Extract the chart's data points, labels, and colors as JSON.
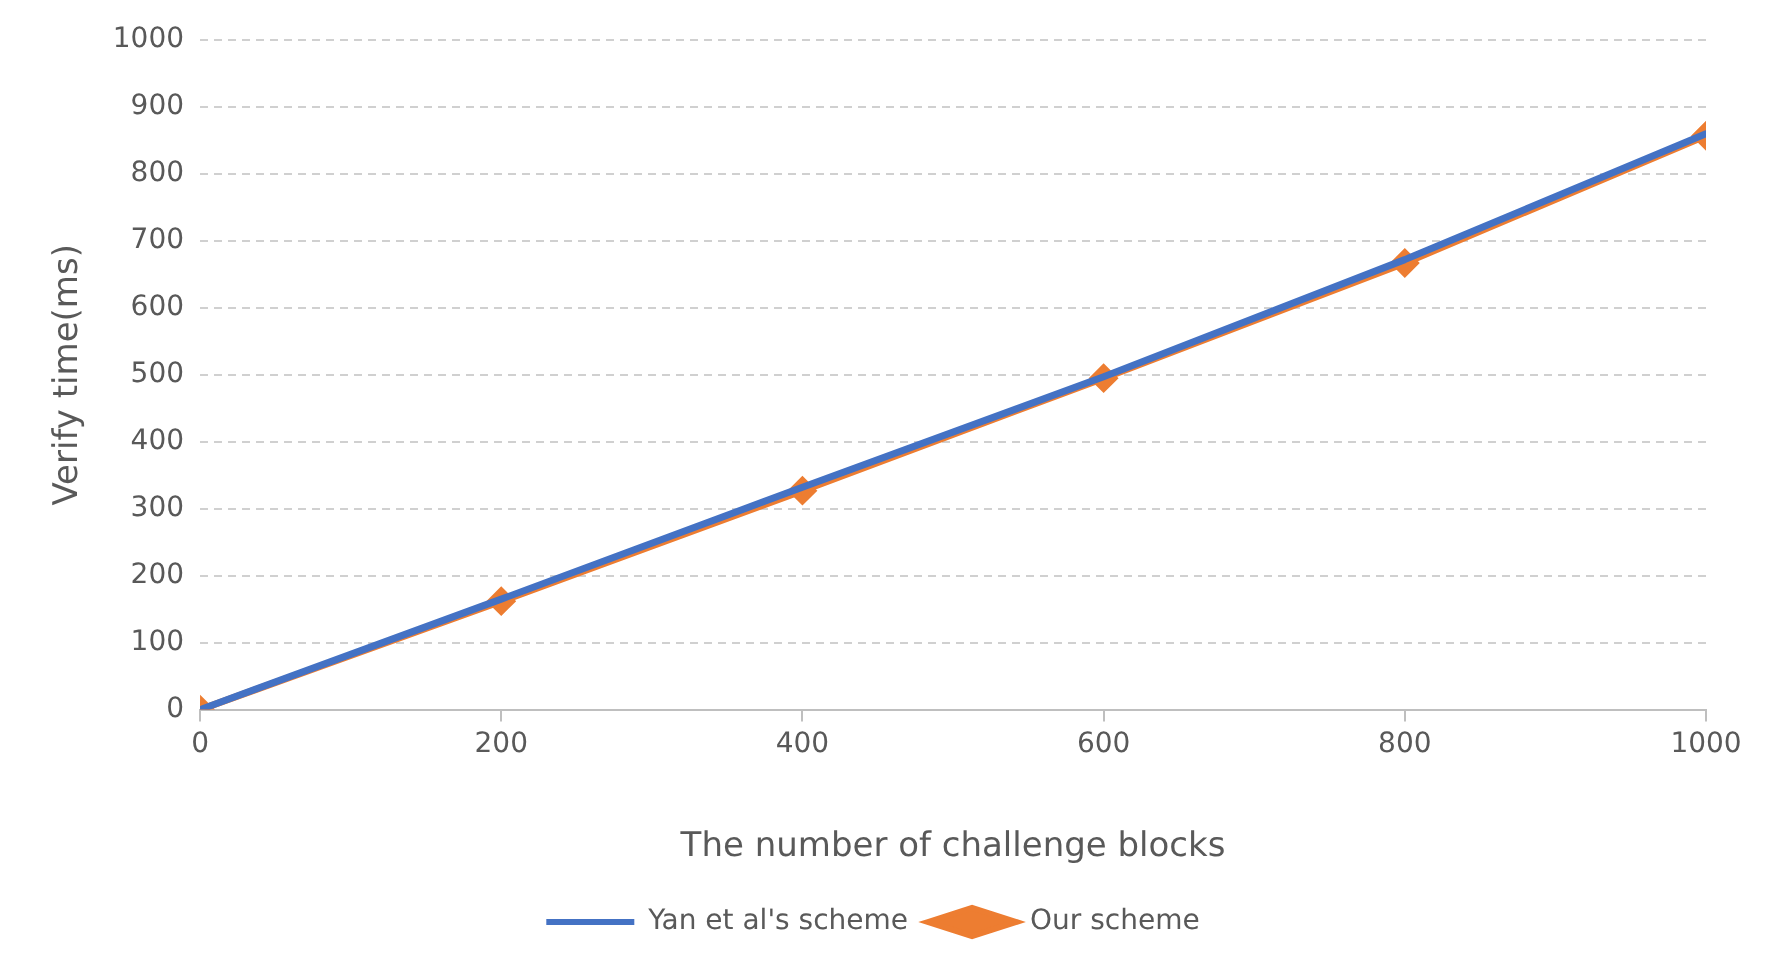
{
  "chart_data": {
    "type": "line",
    "xlabel": "The number of challenge blocks",
    "ylabel": "Verify time(ms)",
    "x": [
      0,
      200,
      400,
      600,
      800,
      1000
    ],
    "series": [
      {
        "name": "Yan et al's scheme",
        "color": "#4472c4",
        "values": [
          0,
          165,
          332,
          497,
          672,
          860
        ],
        "marker": "none"
      },
      {
        "name": "Our scheme",
        "color": "#ed7d31",
        "values": [
          0,
          162,
          327,
          495,
          667,
          857
        ],
        "marker": "diamond"
      }
    ],
    "xlim": [
      0,
      1000
    ],
    "xticks": [
      0,
      200,
      400,
      600,
      800,
      1000
    ],
    "ylim": [
      0,
      1000
    ],
    "yticks": [
      0,
      100,
      200,
      300,
      400,
      500,
      600,
      700,
      800,
      900,
      1000
    ],
    "grid": "y",
    "legend": "bottom",
    "line_style": "solid"
  }
}
